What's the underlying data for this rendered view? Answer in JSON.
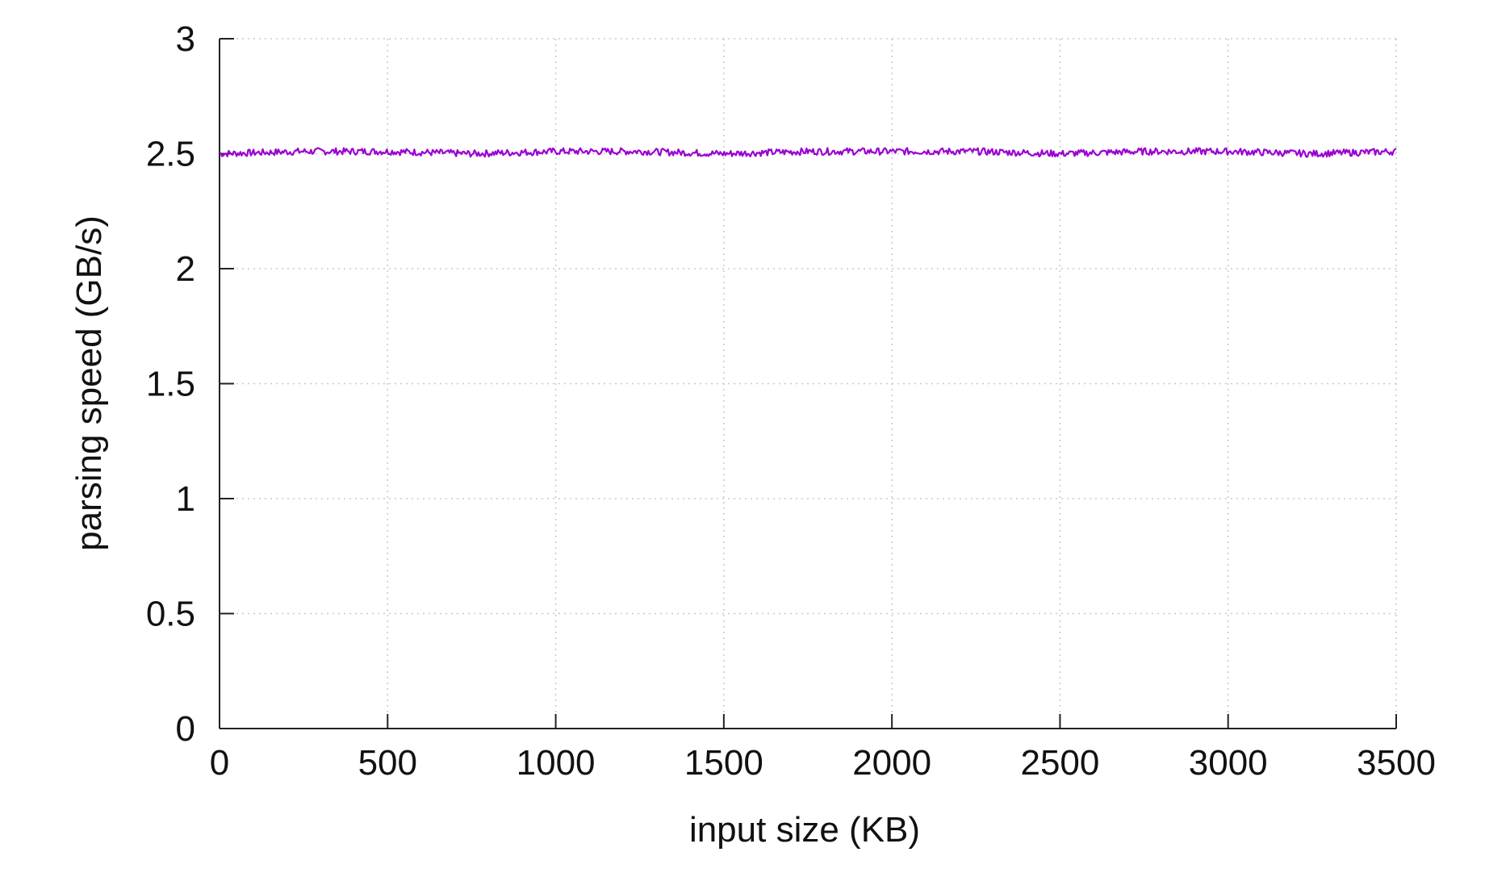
{
  "chart_data": {
    "type": "line",
    "title": "",
    "xlabel": "input size (KB)",
    "ylabel": "parsing speed (GB/s)",
    "xlim": [
      0,
      3500
    ],
    "ylim": [
      0,
      3
    ],
    "x_ticks": [
      "0",
      "500",
      "1000",
      "1500",
      "2000",
      "2500",
      "3000",
      "3500"
    ],
    "y_ticks": [
      "0",
      "0.5",
      "1",
      "1.5",
      "2",
      "2.5",
      "3"
    ],
    "grid": true,
    "grid_style": "dotted",
    "legend": "none",
    "series": [
      {
        "color": "#9b00d3",
        "x": [
          0,
          250,
          500,
          750,
          1000,
          1250,
          1500,
          1750,
          2000,
          2250,
          2500,
          2750,
          3000,
          3250,
          3500
        ],
        "y": [
          2.5,
          2.51,
          2.51,
          2.5,
          2.51,
          2.51,
          2.5,
          2.51,
          2.51,
          2.51,
          2.5,
          2.51,
          2.51,
          2.5,
          2.51
        ]
      }
    ]
  }
}
